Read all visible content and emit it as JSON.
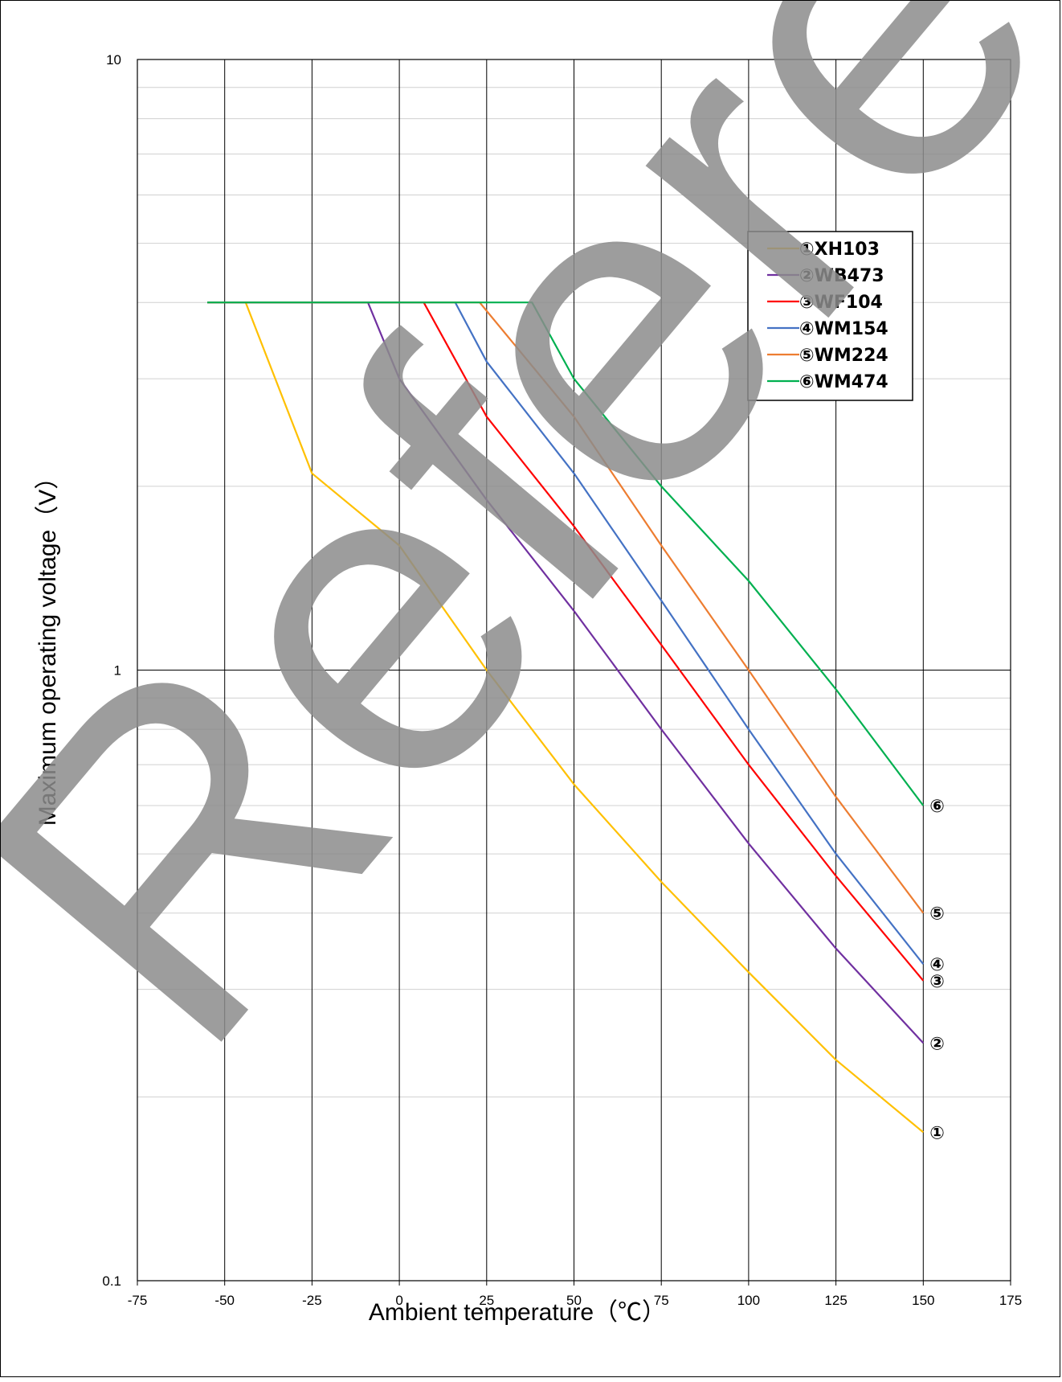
{
  "chart_data": {
    "type": "line",
    "xlabel": "Ambient temperature（℃）",
    "ylabel": "Maximum operating voltage（V）",
    "x_ticks": [
      "-75",
      "-50",
      "-25",
      "0",
      "25",
      "50",
      "75",
      "100",
      "125",
      "150",
      "175"
    ],
    "y_ticks": [
      "0.1",
      "1",
      "10"
    ],
    "xlim": [
      -75,
      175
    ],
    "ylim": [
      0.1,
      10
    ],
    "yscale": "log",
    "grid": true,
    "legend_position": "upper-right",
    "series": [
      {
        "name": "①XH103",
        "end_label": "①",
        "color": "#ffc000",
        "points": [
          [
            -55,
            4.0
          ],
          [
            -44,
            4.0
          ],
          [
            -25,
            2.1
          ],
          [
            0,
            1.6
          ],
          [
            25,
            1.0
          ],
          [
            50,
            0.65
          ],
          [
            75,
            0.45
          ],
          [
            100,
            0.32
          ],
          [
            125,
            0.23
          ],
          [
            150,
            0.175
          ]
        ]
      },
      {
        "name": "②WB473",
        "end_label": "②",
        "color": "#7030a0",
        "points": [
          [
            -55,
            4.0
          ],
          [
            -9,
            4.0
          ],
          [
            0,
            3.0
          ],
          [
            25,
            1.9
          ],
          [
            50,
            1.25
          ],
          [
            75,
            0.8
          ],
          [
            100,
            0.52
          ],
          [
            125,
            0.35
          ],
          [
            150,
            0.245
          ]
        ]
      },
      {
        "name": "③WF104",
        "end_label": "③",
        "color": "#ff0000",
        "points": [
          [
            -55,
            4.0
          ],
          [
            7,
            4.0
          ],
          [
            25,
            2.6
          ],
          [
            50,
            1.72
          ],
          [
            75,
            1.1
          ],
          [
            100,
            0.7
          ],
          [
            125,
            0.46
          ],
          [
            150,
            0.31
          ]
        ]
      },
      {
        "name": "④WM154",
        "end_label": "④",
        "color": "#4472c4",
        "points": [
          [
            -55,
            4.0
          ],
          [
            16,
            4.0
          ],
          [
            25,
            3.2
          ],
          [
            50,
            2.1
          ],
          [
            75,
            1.3
          ],
          [
            100,
            0.8
          ],
          [
            125,
            0.5
          ],
          [
            150,
            0.33
          ]
        ]
      },
      {
        "name": "⑤WM224",
        "end_label": "⑤",
        "color": "#ed7d31",
        "points": [
          [
            -55,
            4.0
          ],
          [
            23,
            4.0
          ],
          [
            50,
            2.6
          ],
          [
            75,
            1.6
          ],
          [
            100,
            1.0
          ],
          [
            125,
            0.62
          ],
          [
            150,
            0.4
          ]
        ]
      },
      {
        "name": "⑥WM474",
        "end_label": "⑥",
        "color": "#00b050",
        "points": [
          [
            -55,
            4.0
          ],
          [
            38,
            4.0
          ],
          [
            50,
            3.0
          ],
          [
            75,
            2.0
          ],
          [
            100,
            1.4
          ],
          [
            125,
            0.93
          ],
          [
            150,
            0.6
          ]
        ]
      }
    ]
  },
  "watermark": {
    "text": "Reference Only",
    "color": "#8c8c8c"
  }
}
